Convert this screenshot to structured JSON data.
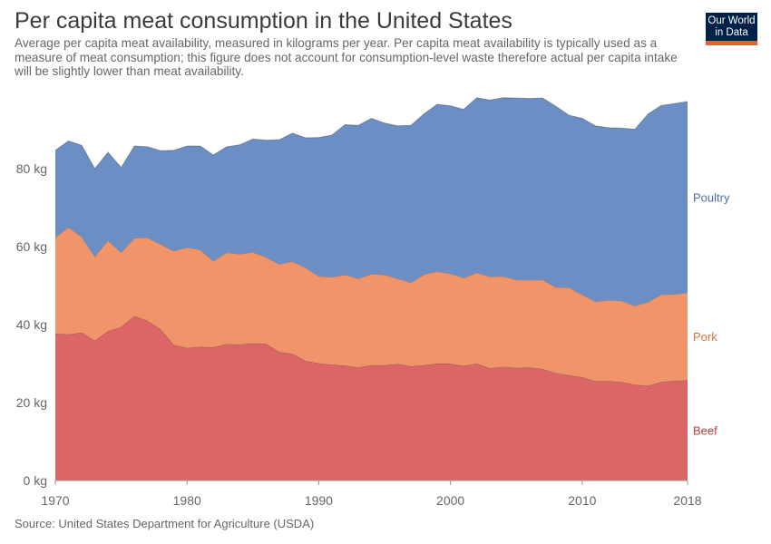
{
  "header": {
    "title": "Per capita meat consumption in the United States",
    "subtitle": "Average per capita meat availability, measured in kilograms per year. Per capita meat availability is typically used as a measure of meat consumption; this figure does not account for consumption-level waste therefore actual per capita intake will be slightly lower than meat availability."
  },
  "logo": {
    "line1": "Our World",
    "line2": "in Data"
  },
  "footer": {
    "source": "Source: United States Department for Agriculture (USDA)"
  },
  "chart_data": {
    "type": "area",
    "stacked": true,
    "title": "Per capita meat consumption in the United States",
    "x_ticks": [
      "1970",
      "1980",
      "1990",
      "2000",
      "2010",
      "2018"
    ],
    "y_ticks": [
      "0 kg",
      "20 kg",
      "40 kg",
      "60 kg",
      "80 kg"
    ],
    "ylim": [
      0,
      100
    ],
    "xlim": [
      1970,
      2018
    ],
    "grid": "horizontal dashed",
    "legend": "right, inline labels",
    "x": [
      1970,
      1971,
      1972,
      1973,
      1974,
      1975,
      1976,
      1977,
      1978,
      1979,
      1980,
      1981,
      1982,
      1983,
      1984,
      1985,
      1986,
      1987,
      1988,
      1989,
      1990,
      1991,
      1992,
      1993,
      1994,
      1995,
      1996,
      1997,
      1998,
      1999,
      2000,
      2001,
      2002,
      2003,
      2004,
      2005,
      2006,
      2007,
      2008,
      2009,
      2010,
      2011,
      2012,
      2013,
      2014,
      2015,
      2016,
      2017,
      2018
    ],
    "series": [
      {
        "name": "Beef",
        "color": "#dc6565",
        "values": [
          37.7,
          37.5,
          38.0,
          35.9,
          38.3,
          39.4,
          42.2,
          41.0,
          38.8,
          34.8,
          34.0,
          34.3,
          34.2,
          35.0,
          34.9,
          35.2,
          35.1,
          33.0,
          32.5,
          30.7,
          30.1,
          29.7,
          29.5,
          29.0,
          29.6,
          29.6,
          29.9,
          29.3,
          29.6,
          30.0,
          30.0,
          29.4,
          30.0,
          28.8,
          29.2,
          28.9,
          29.0,
          28.6,
          27.6,
          27.0,
          26.5,
          25.5,
          25.5,
          25.3,
          24.6,
          24.3,
          25.3,
          25.6,
          25.7
        ]
      },
      {
        "name": "Pork",
        "color": "#f0956a",
        "values": [
          24.7,
          27.5,
          24.5,
          21.6,
          23.3,
          19.1,
          20.0,
          21.3,
          21.8,
          24.1,
          25.8,
          24.9,
          22.1,
          23.5,
          23.2,
          23.4,
          22.2,
          22.5,
          23.7,
          23.9,
          22.3,
          22.5,
          23.3,
          22.8,
          23.4,
          23.2,
          21.9,
          21.5,
          23.3,
          23.6,
          23.1,
          22.6,
          23.3,
          23.5,
          23.2,
          22.6,
          22.4,
          22.9,
          22.0,
          22.5,
          21.2,
          20.4,
          20.8,
          20.8,
          20.2,
          21.5,
          22.4,
          22.2,
          22.5
        ]
      },
      {
        "name": "Poultry",
        "color": "#6b8fc4",
        "values": [
          22.3,
          22.1,
          23.5,
          22.5,
          22.6,
          21.8,
          23.6,
          23.3,
          24.0,
          25.8,
          26.0,
          26.6,
          27.2,
          27.1,
          28.0,
          29.0,
          30.0,
          31.9,
          32.9,
          33.3,
          35.6,
          36.4,
          38.5,
          39.3,
          39.9,
          38.9,
          39.2,
          40.3,
          41.2,
          42.9,
          43.0,
          43.2,
          44.9,
          45.3,
          45.8,
          46.6,
          46.6,
          46.6,
          46.4,
          44.2,
          45.2,
          45.1,
          44.2,
          44.3,
          45.3,
          48.2,
          48.5,
          48.9,
          49.0
        ]
      }
    ]
  }
}
